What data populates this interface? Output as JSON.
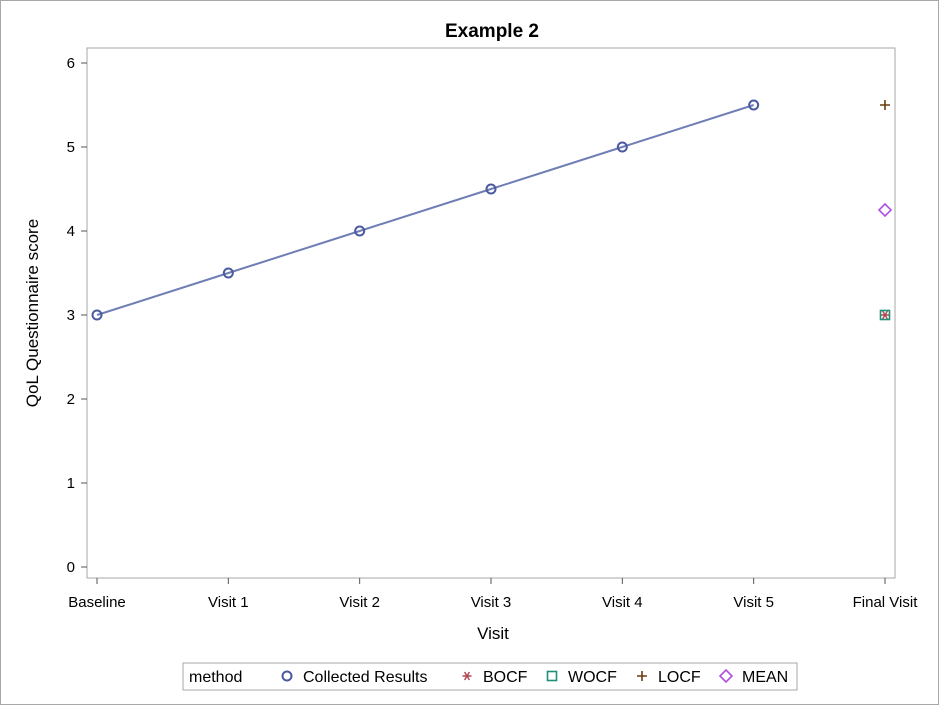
{
  "chart_data": {
    "type": "line",
    "title": "Example 2",
    "xlabel": "Visit",
    "ylabel": "QoL Questionnaire score",
    "categories": [
      "Baseline",
      "Visit 1",
      "Visit 2",
      "Visit 3",
      "Visit 4",
      "Visit 5",
      "Final Visit"
    ],
    "ylim": [
      0,
      6
    ],
    "yticks": [
      0,
      1,
      2,
      3,
      4,
      5,
      6
    ],
    "grid": false,
    "legend": {
      "position": "bottom",
      "title": "method",
      "entries": [
        {
          "name": "Collected Results",
          "marker": "circle",
          "color": "#4a5aa0"
        },
        {
          "name": "BOCF",
          "marker": "asterisk",
          "color": "#b0454f"
        },
        {
          "name": "WOCF",
          "marker": "square",
          "color": "#1f8f7a"
        },
        {
          "name": "LOCF",
          "marker": "plus",
          "color": "#6b3a10"
        },
        {
          "name": "MEAN",
          "marker": "diamond",
          "color": "#b04fe0"
        }
      ]
    },
    "series": [
      {
        "name": "Collected Results",
        "marker": "circle",
        "line": true,
        "color": "#4a5aa0",
        "points": [
          {
            "x": "Baseline",
            "y": 3.0
          },
          {
            "x": "Visit 1",
            "y": 3.5
          },
          {
            "x": "Visit 2",
            "y": 4.0
          },
          {
            "x": "Visit 3",
            "y": 4.5
          },
          {
            "x": "Visit 4",
            "y": 5.0
          },
          {
            "x": "Visit 5",
            "y": 5.5
          }
        ]
      },
      {
        "name": "BOCF",
        "marker": "asterisk",
        "line": false,
        "color": "#b0454f",
        "points": [
          {
            "x": "Final Visit",
            "y": 3.0
          }
        ]
      },
      {
        "name": "WOCF",
        "marker": "square",
        "line": false,
        "color": "#1f8f7a",
        "points": [
          {
            "x": "Final Visit",
            "y": 3.0
          }
        ]
      },
      {
        "name": "LOCF",
        "marker": "plus",
        "line": false,
        "color": "#6b3a10",
        "points": [
          {
            "x": "Final Visit",
            "y": 5.5
          }
        ]
      },
      {
        "name": "MEAN",
        "marker": "diamond",
        "line": false,
        "color": "#b04fe0",
        "points": [
          {
            "x": "Final Visit",
            "y": 4.25
          }
        ]
      }
    ]
  }
}
